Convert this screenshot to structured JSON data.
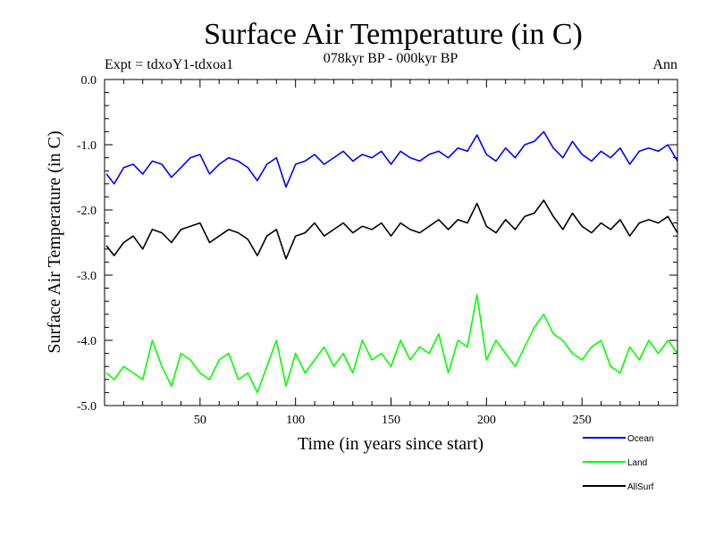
{
  "chart_data": {
    "type": "line",
    "title": "Surface Air Temperature (in C)",
    "subtitle": "078kyr BP - 000kyr BP",
    "expt_label": "Expt = tdxoY1-tdxoa1",
    "season_label": "Ann",
    "xlabel": "Time (in years since start)",
    "ylabel": "Surface Air Temperature (in C)",
    "xlim": [
      0,
      300
    ],
    "ylim": [
      -5.0,
      0.0
    ],
    "x_ticks": [
      50,
      100,
      150,
      200,
      250
    ],
    "x_tick_labels": [
      "50",
      "100",
      "150",
      "200",
      "250"
    ],
    "y_ticks": [
      0.0,
      -1.0,
      -2.0,
      -3.0,
      -4.0,
      -5.0
    ],
    "y_tick_labels": [
      "0.0",
      "-1.0",
      "-2.0",
      "-3.0",
      "-4.0",
      "-5.0"
    ],
    "legend_position": "bottom-right",
    "x": [
      1,
      5,
      10,
      15,
      20,
      25,
      30,
      35,
      40,
      45,
      50,
      55,
      60,
      65,
      70,
      75,
      80,
      85,
      90,
      95,
      100,
      105,
      110,
      115,
      120,
      125,
      130,
      135,
      140,
      145,
      150,
      155,
      160,
      165,
      170,
      175,
      180,
      185,
      190,
      195,
      200,
      205,
      210,
      215,
      220,
      225,
      230,
      235,
      240,
      245,
      250,
      255,
      260,
      265,
      270,
      275,
      280,
      285,
      290,
      295,
      300
    ],
    "series": [
      {
        "name": "Ocean",
        "color": "#0000ff",
        "values": [
          -1.45,
          -1.6,
          -1.35,
          -1.3,
          -1.45,
          -1.25,
          -1.3,
          -1.5,
          -1.35,
          -1.2,
          -1.15,
          -1.45,
          -1.3,
          -1.2,
          -1.25,
          -1.35,
          -1.55,
          -1.3,
          -1.2,
          -1.65,
          -1.3,
          -1.25,
          -1.15,
          -1.3,
          -1.2,
          -1.1,
          -1.25,
          -1.15,
          -1.2,
          -1.1,
          -1.3,
          -1.1,
          -1.2,
          -1.25,
          -1.15,
          -1.1,
          -1.2,
          -1.05,
          -1.1,
          -0.85,
          -1.15,
          -1.25,
          -1.05,
          -1.2,
          -1.0,
          -0.95,
          -0.8,
          -1.05,
          -1.2,
          -0.95,
          -1.15,
          -1.25,
          -1.1,
          -1.2,
          -1.05,
          -1.3,
          -1.1,
          -1.05,
          -1.1,
          -1.0,
          -1.25
        ]
      },
      {
        "name": "Land",
        "color": "#00ff00",
        "values": [
          -4.5,
          -4.6,
          -4.4,
          -4.5,
          -4.6,
          -4.0,
          -4.4,
          -4.7,
          -4.2,
          -4.3,
          -4.5,
          -4.6,
          -4.3,
          -4.2,
          -4.6,
          -4.5,
          -4.8,
          -4.4,
          -4.0,
          -4.7,
          -4.2,
          -4.5,
          -4.3,
          -4.1,
          -4.4,
          -4.2,
          -4.5,
          -4.0,
          -4.3,
          -4.2,
          -4.4,
          -4.0,
          -4.3,
          -4.1,
          -4.2,
          -3.9,
          -4.5,
          -4.0,
          -4.1,
          -3.3,
          -4.3,
          -4.0,
          -4.2,
          -4.4,
          -4.1,
          -3.8,
          -3.6,
          -3.9,
          -4.0,
          -4.2,
          -4.3,
          -4.1,
          -4.0,
          -4.4,
          -4.5,
          -4.1,
          -4.3,
          -4.0,
          -4.2,
          -4.0,
          -4.2
        ]
      },
      {
        "name": "AllSurf",
        "color": "#000000",
        "values": [
          -2.55,
          -2.7,
          -2.5,
          -2.4,
          -2.6,
          -2.3,
          -2.35,
          -2.5,
          -2.3,
          -2.25,
          -2.2,
          -2.5,
          -2.4,
          -2.3,
          -2.35,
          -2.45,
          -2.7,
          -2.4,
          -2.3,
          -2.75,
          -2.4,
          -2.35,
          -2.2,
          -2.4,
          -2.3,
          -2.2,
          -2.35,
          -2.25,
          -2.3,
          -2.2,
          -2.4,
          -2.2,
          -2.3,
          -2.35,
          -2.25,
          -2.15,
          -2.3,
          -2.15,
          -2.2,
          -1.9,
          -2.25,
          -2.35,
          -2.15,
          -2.3,
          -2.1,
          -2.05,
          -1.85,
          -2.1,
          -2.3,
          -2.05,
          -2.25,
          -2.35,
          -2.2,
          -2.3,
          -2.15,
          -2.4,
          -2.2,
          -2.15,
          -2.2,
          -2.1,
          -2.35
        ]
      }
    ]
  }
}
